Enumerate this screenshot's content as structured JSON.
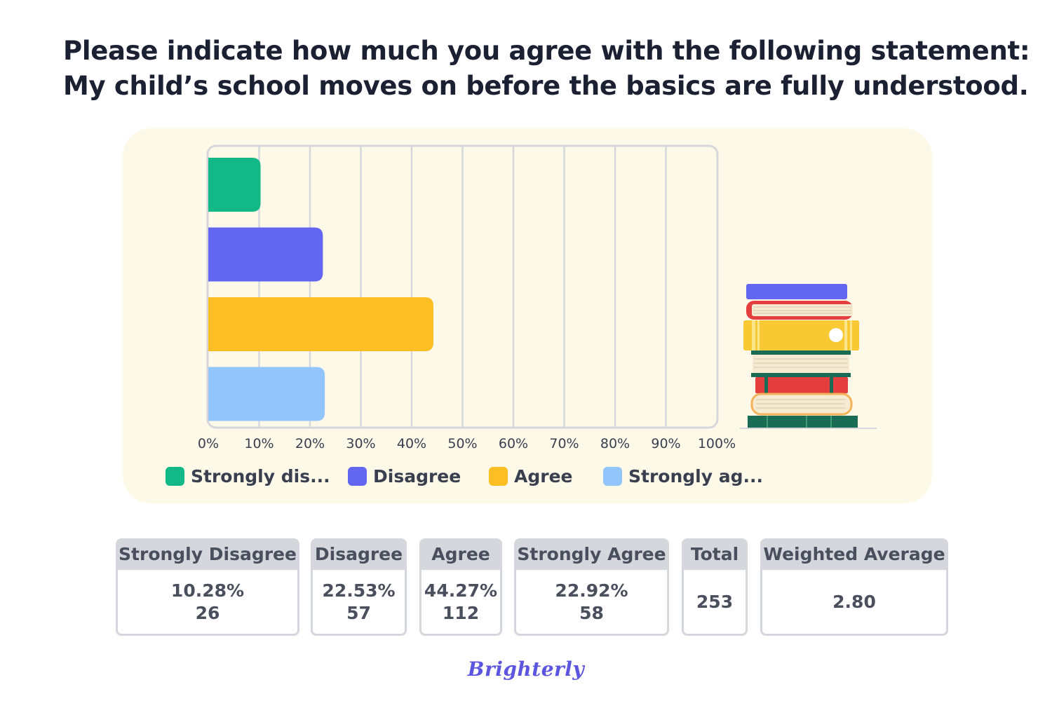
{
  "title": {
    "line1": "Please indicate how much you agree with the following statement:",
    "line2": "My child’s school moves on before the basics are fully understood."
  },
  "chart_data": {
    "type": "bar",
    "orientation": "horizontal",
    "categories": [
      "Strongly disagree",
      "Disagree",
      "Agree",
      "Strongly agree"
    ],
    "values": [
      10.28,
      22.53,
      44.27,
      22.92
    ],
    "colors": [
      "#12b886",
      "#6366f1",
      "#fbbf24",
      "#93c5fd"
    ],
    "xlim": [
      0,
      100
    ],
    "xticks": [
      "0%",
      "10%",
      "20%",
      "30%",
      "40%",
      "50%",
      "60%",
      "70%",
      "80%",
      "90%",
      "100%"
    ],
    "grid": true,
    "legend_position": "bottom",
    "legend_labels": [
      "Strongly dis...",
      "Disagree",
      "Agree",
      "Strongly ag..."
    ]
  },
  "table": {
    "columns": [
      {
        "header": "Strongly Disagree",
        "lines": [
          "10.28%",
          "26"
        ]
      },
      {
        "header": "Disagree",
        "lines": [
          "22.53%",
          "57"
        ]
      },
      {
        "header": "Agree",
        "lines": [
          "44.27%",
          "112"
        ]
      },
      {
        "header": "Strongly Agree",
        "lines": [
          "22.92%",
          "58"
        ]
      },
      {
        "header": "Total",
        "lines": [
          "253"
        ]
      },
      {
        "header": "Weighted Average",
        "lines": [
          "2.80"
        ]
      }
    ]
  },
  "brand": "Brighterly"
}
